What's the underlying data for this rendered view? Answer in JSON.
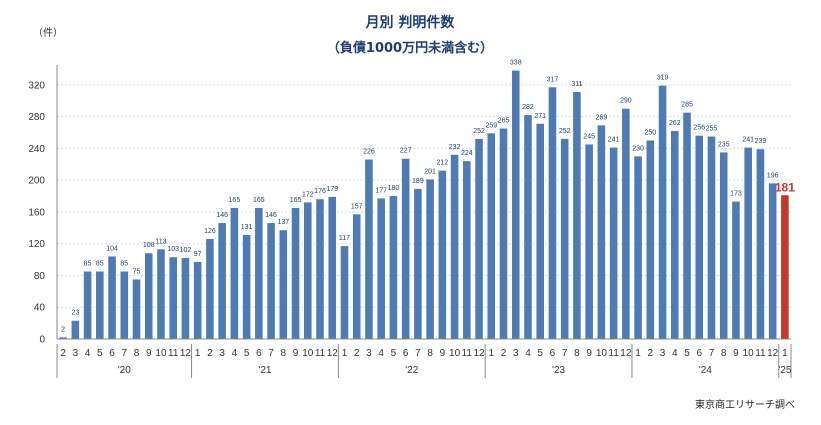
{
  "chart_data": {
    "type": "bar",
    "title": "月別 判明件数",
    "subtitle": "（負債1000万円未満含む）",
    "unit_label": "（件）",
    "source": "東京商工リサーチ調べ",
    "ylim": [
      0,
      340
    ],
    "yticks": [
      0,
      40,
      80,
      120,
      160,
      200,
      240,
      280,
      320
    ],
    "grid": true,
    "colors": {
      "bar": "#4f7bb4",
      "highlight": "#c0392b",
      "title": "#1f3d73"
    },
    "categories": [
      "2",
      "3",
      "4",
      "5",
      "6",
      "7",
      "8",
      "9",
      "10",
      "11",
      "12",
      "1",
      "2",
      "3",
      "4",
      "5",
      "6",
      "7",
      "8",
      "9",
      "10",
      "11",
      "12",
      "1",
      "2",
      "3",
      "4",
      "5",
      "6",
      "7",
      "8",
      "9",
      "10",
      "11",
      "12",
      "1",
      "2",
      "3",
      "4",
      "5",
      "6",
      "7",
      "8",
      "9",
      "10",
      "11",
      "12",
      "1",
      "2",
      "3",
      "4",
      "5",
      "6",
      "7",
      "8",
      "9",
      "10",
      "11",
      "12",
      "1"
    ],
    "values": [
      2,
      23,
      85,
      85,
      104,
      85,
      75,
      108,
      113,
      103,
      102,
      97,
      126,
      146,
      165,
      131,
      165,
      146,
      137,
      165,
      172,
      176,
      179,
      117,
      157,
      226,
      177,
      180,
      227,
      189,
      201,
      212,
      232,
      224,
      252,
      259,
      265,
      338,
      282,
      271,
      317,
      252,
      311,
      245,
      269,
      241,
      290,
      230,
      250,
      319,
      262,
      285,
      256,
      255,
      235,
      173,
      241,
      239,
      196,
      181
    ],
    "highlight_index": 59,
    "years": [
      {
        "label": "'20",
        "start": 0,
        "end": 10
      },
      {
        "label": "'21",
        "start": 11,
        "end": 22
      },
      {
        "label": "'22",
        "start": 23,
        "end": 34
      },
      {
        "label": "'23",
        "start": 35,
        "end": 46
      },
      {
        "label": "'24",
        "start": 47,
        "end": 58
      },
      {
        "label": "'25",
        "start": 59,
        "end": 59
      }
    ]
  }
}
